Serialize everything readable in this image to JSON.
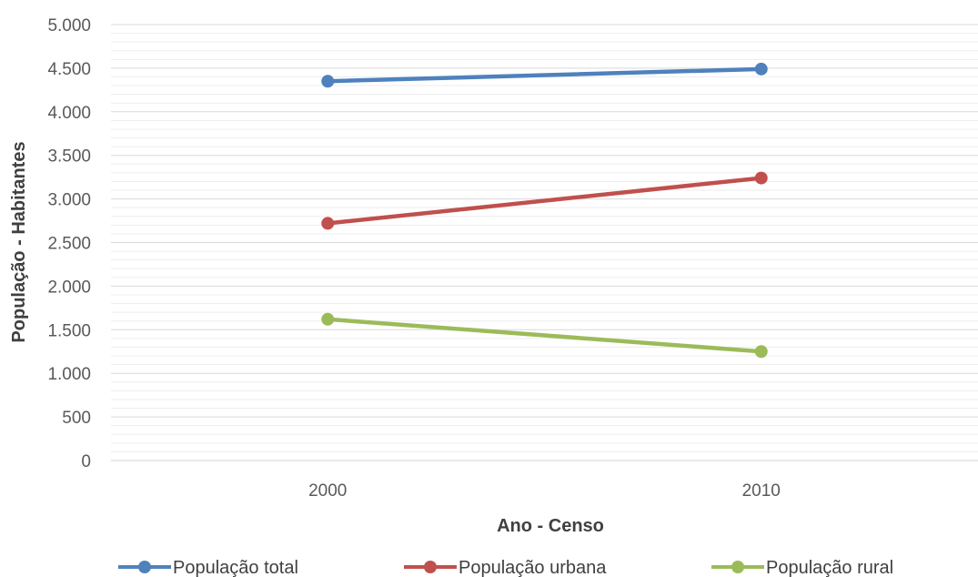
{
  "chart_data": {
    "type": "line",
    "categories": [
      "2000",
      "2010"
    ],
    "series": [
      {
        "name": "População total",
        "values": [
          4350,
          4490
        ],
        "color": "#4f81bd"
      },
      {
        "name": "População urbana",
        "values": [
          2720,
          3240
        ],
        "color": "#c0504d"
      },
      {
        "name": "População rural",
        "values": [
          1620,
          1250
        ],
        "color": "#9bbb59"
      }
    ],
    "title": "",
    "xlabel": "Ano - Censo",
    "ylabel": "População - Habitantes",
    "ylim": [
      0,
      5000
    ],
    "yticks": [
      {
        "value": 0,
        "label": "0"
      },
      {
        "value": 500,
        "label": "500"
      },
      {
        "value": 1000,
        "label": "1.000"
      },
      {
        "value": 1500,
        "label": "1.500"
      },
      {
        "value": 2000,
        "label": "2.000"
      },
      {
        "value": 2500,
        "label": "2.500"
      },
      {
        "value": 3000,
        "label": "3.000"
      },
      {
        "value": 3500,
        "label": "3.500"
      },
      {
        "value": 4000,
        "label": "4.000"
      },
      {
        "value": 4500,
        "label": "4.500"
      },
      {
        "value": 5000,
        "label": "5.000"
      }
    ],
    "grid": true,
    "minor_grid": true,
    "legend_position": "bottom"
  }
}
